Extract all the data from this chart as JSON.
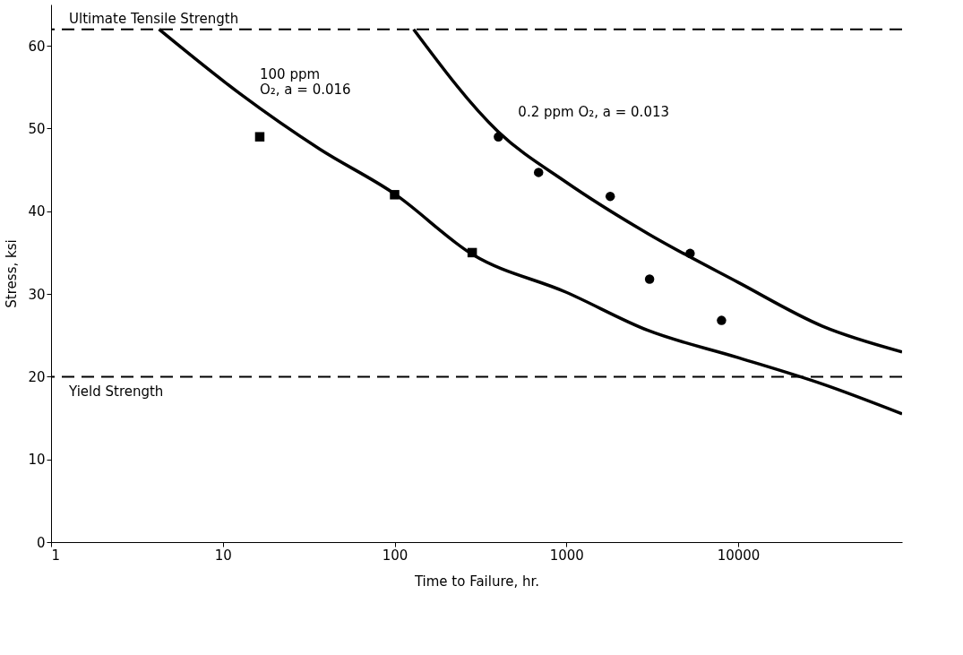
{
  "chart_data": {
    "type": "scatter",
    "xlabel": "Time to Failure, hr.",
    "ylabel": "Stress, ksi",
    "log": "x",
    "xlim": [
      1,
      90000
    ],
    "xticks": [
      1,
      10,
      100,
      1000,
      10000
    ],
    "ylim": [
      0,
      65
    ],
    "yticks": [
      0,
      10,
      20,
      30,
      40,
      50,
      60
    ],
    "grid": false,
    "series": [
      {
        "type": "line",
        "color": "#000000",
        "x": [
          4.25,
          12.6,
          36.7,
          100,
          283,
          1000,
          2980,
          10000,
          31000,
          90000
        ],
        "values": [
          62,
          54.2,
          47.5,
          42.1,
          34.8,
          30.2,
          25.6,
          22.3,
          19.1,
          15.5
        ]
      },
      {
        "type": "line",
        "color": "#000000",
        "x": [
          129,
          402,
          1000,
          2980,
          10000,
          31000,
          90000
        ],
        "values": [
          62,
          49.6,
          43.5,
          37.3,
          31.4,
          26.1,
          23
        ]
      },
      {
        "type": "scatter",
        "marker": "square",
        "color": "#000000",
        "x": [
          16.4,
          100,
          283
        ],
        "values": [
          49,
          42,
          35
        ]
      },
      {
        "type": "scatter",
        "marker": "circle",
        "color": "#000000",
        "x": [
          402,
          689,
          1800,
          5250,
          3050,
          8000
        ],
        "values": [
          49,
          44.7,
          41.8,
          34.9,
          31.8,
          26.8
        ]
      }
    ],
    "ref_lines": [
      {
        "axis": "y",
        "value": 62,
        "label": "Ultimate Tensile Strength",
        "color": "#000000",
        "line_style": "dashed"
      },
      {
        "axis": "y",
        "value": 20,
        "label": "Yield Strength",
        "color": "#000000",
        "line_style": "dashed"
      }
    ],
    "annotations": [
      {
        "text": "100 ppm\nO₂, a = 0.016",
        "x": 12.6,
        "y": 54.2
      },
      {
        "text": "0.2 ppm O₂, a = 0.013",
        "x": 402,
        "y": 49.6
      }
    ]
  }
}
